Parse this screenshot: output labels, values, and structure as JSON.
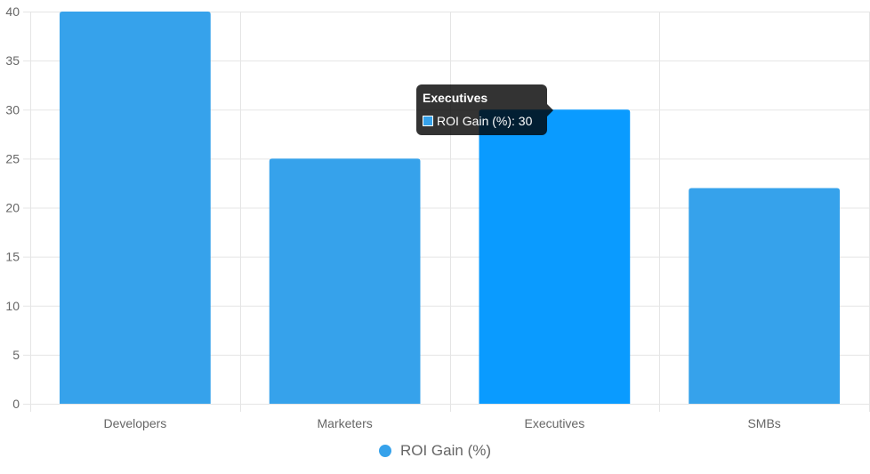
{
  "chart_data": {
    "type": "bar",
    "categories": [
      "Developers",
      "Marketers",
      "Executives",
      "SMBs"
    ],
    "series": [
      {
        "name": "ROI Gain (%)",
        "values": [
          40,
          25,
          30,
          22
        ]
      }
    ],
    "ylim": [
      0,
      40
    ],
    "yticks": [
      0,
      5,
      10,
      15,
      20,
      25,
      30,
      35,
      40
    ],
    "grid": true,
    "legend_position": "bottom",
    "bar_color": "#36a2eb",
    "hover_bar_color": "#0a9bff",
    "hovered_category": "Executives"
  },
  "legend": {
    "label": "ROI Gain (%)",
    "color": "#36a2eb"
  },
  "tooltip": {
    "title": "Executives",
    "series_label": "ROI Gain (%)",
    "value": "30",
    "text": "ROI Gain (%): 30",
    "swatch_color": "#36a2eb"
  }
}
